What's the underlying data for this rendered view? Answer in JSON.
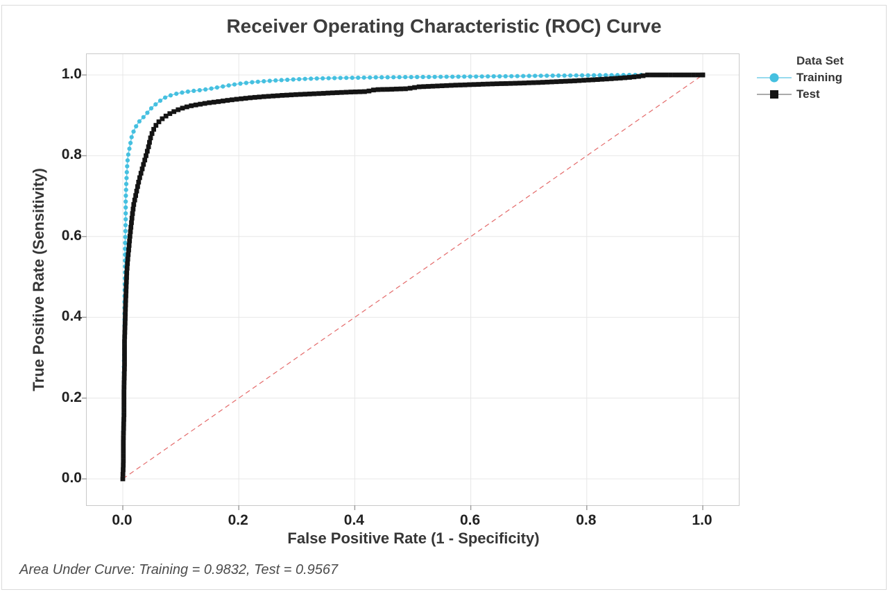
{
  "window": {
    "background": "#ffffff",
    "border_color": "#dadada"
  },
  "title": "Receiver Operating Characteristic (ROC) Curve",
  "footer": "Area Under Curve: Training = 0.9832, Test = 0.9567",
  "chart_data": {
    "type": "line",
    "title": "Receiver Operating Characteristic (ROC) Curve",
    "xlabel": "False Positive Rate (1 - Specificity)",
    "ylabel": "True Positive Rate (Sensitivity)",
    "xlim": [
      0,
      1
    ],
    "ylim": [
      0,
      1
    ],
    "xticks": [
      0,
      0.2,
      0.4,
      0.6,
      0.8,
      1
    ],
    "xtick_labels": [
      "0.0",
      "0.2",
      "0.4",
      "0.6",
      "0.8",
      "1.0"
    ],
    "yticks": [
      0,
      0.2,
      0.4,
      0.6,
      0.8,
      1
    ],
    "ytick_labels": [
      "0.0",
      "0.2",
      "0.4",
      "0.6",
      "0.8",
      "1.0"
    ],
    "grid": true,
    "legend_position": "right",
    "legend_title": "Data Set",
    "colors": {
      "grid": "#e7e7e7",
      "tick": "#9b9b9b",
      "frame": "#c9c9c9",
      "reference": "#e46a6a"
    },
    "reference_line": {
      "from": [
        0,
        0
      ],
      "to": [
        1,
        1
      ],
      "style": "dashed",
      "color": "#e46a6a"
    },
    "annotation": "Area Under Curve: Training = 0.9832, Test = 0.9567",
    "series": [
      {
        "name": "Training",
        "marker": "circle",
        "color": "#45c0e0",
        "line_color": "#74cde8",
        "auc": 0.9832,
        "points": [
          [
            0,
            0
          ],
          [
            0.001,
            0.05
          ],
          [
            0.001,
            0.12
          ],
          [
            0.002,
            0.2
          ],
          [
            0.002,
            0.28
          ],
          [
            0.003,
            0.36
          ],
          [
            0.003,
            0.44
          ],
          [
            0.004,
            0.52
          ],
          [
            0.004,
            0.58
          ],
          [
            0.005,
            0.64
          ],
          [
            0.005,
            0.69
          ],
          [
            0.006,
            0.73
          ],
          [
            0.007,
            0.76
          ],
          [
            0.008,
            0.785
          ],
          [
            0.009,
            0.8
          ],
          [
            0.011,
            0.815
          ],
          [
            0.013,
            0.83
          ],
          [
            0.015,
            0.845
          ],
          [
            0.018,
            0.858
          ],
          [
            0.021,
            0.868
          ],
          [
            0.025,
            0.878
          ],
          [
            0.029,
            0.886
          ],
          [
            0.034,
            0.893
          ],
          [
            0.04,
            0.902
          ],
          [
            0.046,
            0.913
          ],
          [
            0.053,
            0.923
          ],
          [
            0.06,
            0.931
          ],
          [
            0.068,
            0.94
          ],
          [
            0.077,
            0.947
          ],
          [
            0.086,
            0.951
          ],
          [
            0.095,
            0.9545
          ],
          [
            0.105,
            0.957
          ],
          [
            0.115,
            0.9595
          ],
          [
            0.125,
            0.961
          ],
          [
            0.135,
            0.9625
          ],
          [
            0.145,
            0.9645
          ],
          [
            0.155,
            0.967
          ],
          [
            0.165,
            0.9695
          ],
          [
            0.175,
            0.972
          ],
          [
            0.19,
            0.976
          ],
          [
            0.205,
            0.979
          ],
          [
            0.22,
            0.9815
          ],
          [
            0.235,
            0.9835
          ],
          [
            0.25,
            0.985
          ],
          [
            0.27,
            0.987
          ],
          [
            0.29,
            0.9885
          ],
          [
            0.31,
            0.99
          ],
          [
            0.34,
            0.9915
          ],
          [
            0.37,
            0.9925
          ],
          [
            0.4,
            0.993
          ],
          [
            0.44,
            0.994
          ],
          [
            0.48,
            0.9945
          ],
          [
            0.52,
            0.995
          ],
          [
            0.56,
            0.9955
          ],
          [
            0.6,
            0.996
          ],
          [
            0.64,
            0.9965
          ],
          [
            0.68,
            0.997
          ],
          [
            0.72,
            0.998
          ],
          [
            0.76,
            0.9985
          ],
          [
            0.8,
            0.999
          ],
          [
            0.84,
            0.9995
          ],
          [
            0.88,
            1.0
          ],
          [
            1.0,
            1.0
          ]
        ]
      },
      {
        "name": "Test",
        "marker": "square",
        "color": "#141414",
        "line_color": "#8f8f8f",
        "auc": 0.9567,
        "points": [
          [
            0,
            0
          ],
          [
            0.001,
            0.04
          ],
          [
            0.001,
            0.1
          ],
          [
            0.002,
            0.16
          ],
          [
            0.002,
            0.22
          ],
          [
            0.003,
            0.28
          ],
          [
            0.003,
            0.34
          ],
          [
            0.004,
            0.39
          ],
          [
            0.005,
            0.44
          ],
          [
            0.006,
            0.48
          ],
          [
            0.007,
            0.515
          ],
          [
            0.009,
            0.55
          ],
          [
            0.011,
            0.58
          ],
          [
            0.013,
            0.61
          ],
          [
            0.015,
            0.635
          ],
          [
            0.017,
            0.66
          ],
          [
            0.019,
            0.68
          ],
          [
            0.022,
            0.7
          ],
          [
            0.025,
            0.72
          ],
          [
            0.028,
            0.74
          ],
          [
            0.032,
            0.76
          ],
          [
            0.036,
            0.78
          ],
          [
            0.04,
            0.8
          ],
          [
            0.044,
            0.82
          ],
          [
            0.048,
            0.845
          ],
          [
            0.052,
            0.862
          ],
          [
            0.057,
            0.875
          ],
          [
            0.064,
            0.887
          ],
          [
            0.072,
            0.896
          ],
          [
            0.082,
            0.905
          ],
          [
            0.092,
            0.912
          ],
          [
            0.105,
            0.919
          ],
          [
            0.12,
            0.9245
          ],
          [
            0.135,
            0.928
          ],
          [
            0.15,
            0.9315
          ],
          [
            0.165,
            0.934
          ],
          [
            0.18,
            0.937
          ],
          [
            0.2,
            0.9405
          ],
          [
            0.22,
            0.9435
          ],
          [
            0.24,
            0.946
          ],
          [
            0.27,
            0.949
          ],
          [
            0.3,
            0.9515
          ],
          [
            0.33,
            0.9535
          ],
          [
            0.36,
            0.9555
          ],
          [
            0.39,
            0.9575
          ],
          [
            0.42,
            0.959
          ],
          [
            0.435,
            0.9635
          ],
          [
            0.46,
            0.9645
          ],
          [
            0.49,
            0.966
          ],
          [
            0.51,
            0.9705
          ],
          [
            0.54,
            0.9725
          ],
          [
            0.57,
            0.9745
          ],
          [
            0.6,
            0.976
          ],
          [
            0.64,
            0.978
          ],
          [
            0.68,
            0.9795
          ],
          [
            0.72,
            0.9815
          ],
          [
            0.75,
            0.9835
          ],
          [
            0.78,
            0.9855
          ],
          [
            0.81,
            0.988
          ],
          [
            0.84,
            0.9905
          ],
          [
            0.87,
            0.9935
          ],
          [
            0.89,
            0.9965
          ],
          [
            0.905,
            1.0
          ],
          [
            1.0,
            1.0
          ]
        ]
      }
    ]
  }
}
